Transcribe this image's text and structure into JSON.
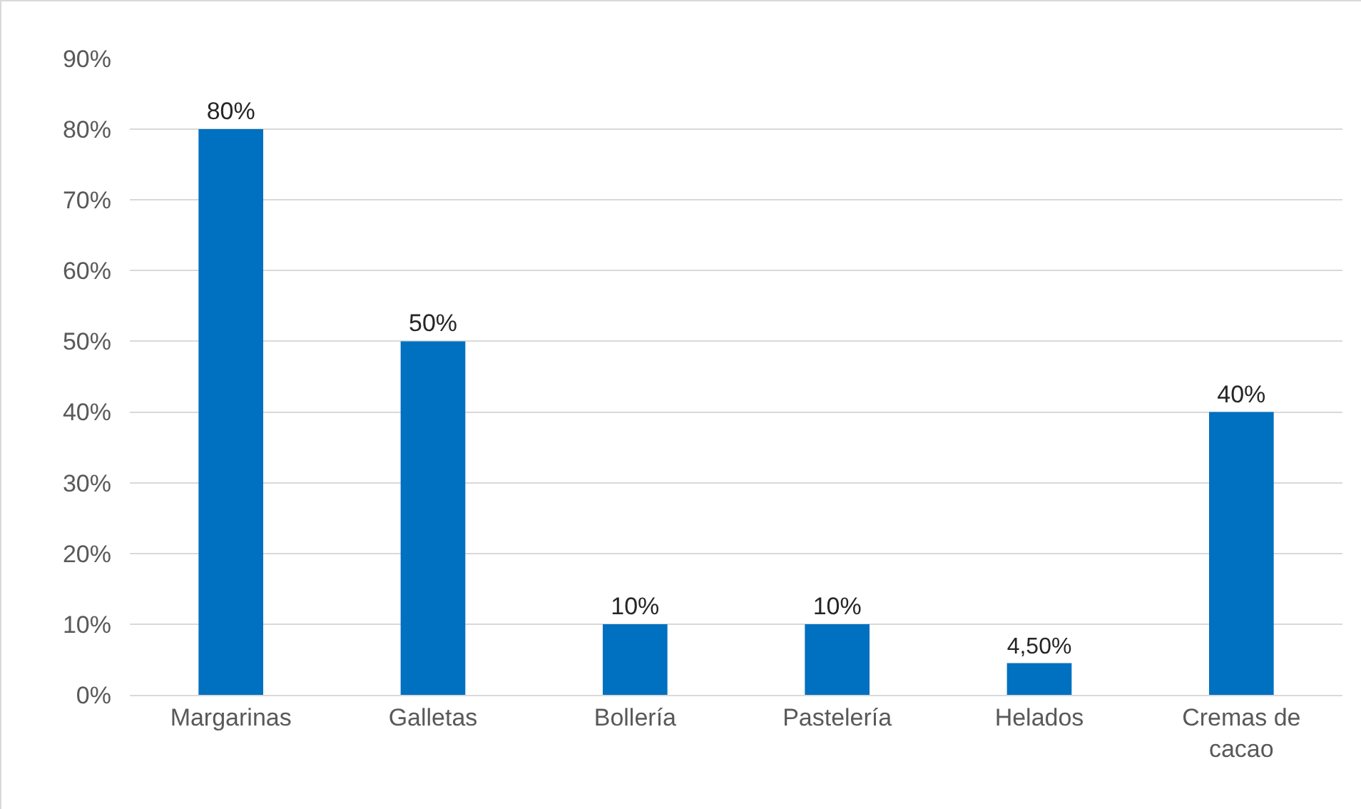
{
  "chart_data": {
    "type": "bar",
    "categories": [
      "Margarinas",
      "Galletas",
      "Bollería",
      "Pastelería",
      "Helados",
      "Cremas de cacao"
    ],
    "values": [
      80,
      50,
      10,
      10,
      4.5,
      40
    ],
    "value_labels": [
      "80%",
      "50%",
      "10%",
      "10%",
      "4,50%",
      "40%"
    ],
    "color": "#0070c0",
    "ylim": [
      0,
      90
    ],
    "yticks": [
      {
        "value": 0,
        "label": "0%"
      },
      {
        "value": 10,
        "label": "10%"
      },
      {
        "value": 20,
        "label": "20%"
      },
      {
        "value": 30,
        "label": "30%"
      },
      {
        "value": 40,
        "label": "40%"
      },
      {
        "value": 50,
        "label": "50%"
      },
      {
        "value": 60,
        "label": "60%"
      },
      {
        "value": 70,
        "label": "70%"
      },
      {
        "value": 80,
        "label": "80%"
      },
      {
        "value": 90,
        "label": "90%"
      }
    ],
    "grid": "y"
  }
}
